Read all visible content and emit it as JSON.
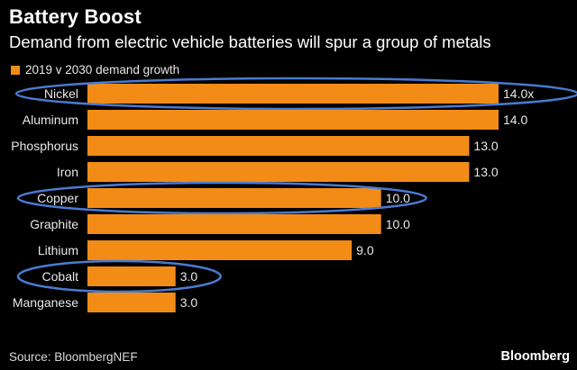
{
  "header": {
    "title": "Battery Boost",
    "subtitle": "Demand from electric vehicle batteries will spur a group of metals"
  },
  "legend": {
    "label": "2019 v 2030 demand growth"
  },
  "footer": {
    "source": "Source: BloombergNEF",
    "brand": "Bloomberg"
  },
  "colors": {
    "bar": "#f28c16",
    "highlight": "#4a7bd2",
    "background": "#000000"
  },
  "chart_data": {
    "type": "bar",
    "orientation": "horizontal",
    "categories": [
      "Nickel",
      "Aluminum",
      "Phosphorus",
      "Iron",
      "Copper",
      "Graphite",
      "Lithium",
      "Cobalt",
      "Manganese"
    ],
    "values": [
      14.0,
      14.0,
      13.0,
      13.0,
      10.0,
      10.0,
      9.0,
      3.0,
      3.0
    ],
    "data_labels": [
      "14.0x",
      "14.0",
      "13.0",
      "13.0",
      "10.0",
      "10.0",
      "9.0",
      "3.0",
      "3.0"
    ],
    "series": [
      {
        "name": "2019 v 2030 demand growth"
      }
    ],
    "highlighted": [
      "Nickel",
      "Copper",
      "Cobalt"
    ],
    "xlim": [
      0,
      14
    ],
    "legend_position": "top-left",
    "grid": false
  }
}
